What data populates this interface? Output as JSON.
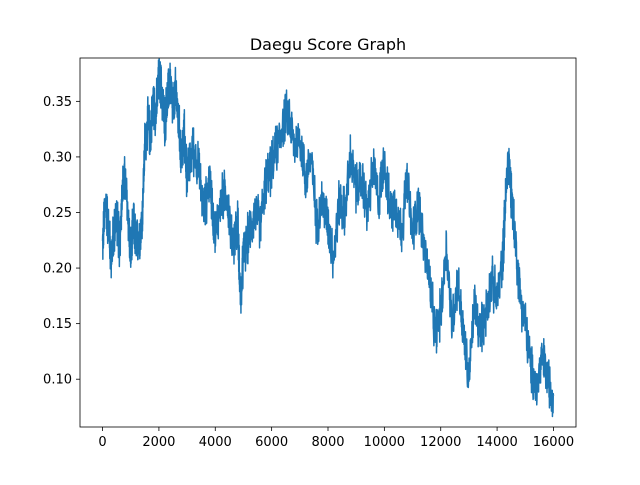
{
  "chart_data": {
    "type": "line",
    "title": "Daegu Score Graph",
    "xlabel": "",
    "ylabel": "",
    "xlim": [
      -800,
      16800
    ],
    "ylim": [
      0.057,
      0.389
    ],
    "xticks": [
      0,
      2000,
      4000,
      6000,
      8000,
      10000,
      12000,
      14000,
      16000
    ],
    "yticks": [
      0.1,
      0.15,
      0.2,
      0.25,
      0.3,
      0.35
    ],
    "xtick_labels": [
      "0",
      "2000",
      "4000",
      "6000",
      "8000",
      "10000",
      "12000",
      "14000",
      "16000"
    ],
    "ytick_labels": [
      "0.10",
      "0.15",
      "0.20",
      "0.25",
      "0.30",
      "0.35"
    ],
    "grid": false,
    "legend": "none",
    "series": [
      {
        "color": "#1f77b4",
        "x": [
          0,
          100,
          200,
          300,
          400,
          500,
          600,
          700,
          800,
          900,
          1000,
          1100,
          1200,
          1300,
          1400,
          1500,
          1600,
          1700,
          1800,
          1900,
          2000,
          2100,
          2200,
          2300,
          2400,
          2500,
          2600,
          2700,
          2800,
          2900,
          3000,
          3200,
          3400,
          3600,
          3800,
          4000,
          4200,
          4400,
          4600,
          4800,
          4900,
          5000,
          5200,
          5400,
          5600,
          5800,
          6000,
          6200,
          6400,
          6600,
          6800,
          7000,
          7200,
          7400,
          7600,
          7800,
          8000,
          8200,
          8400,
          8600,
          8800,
          9000,
          9200,
          9400,
          9600,
          9800,
          10000,
          10200,
          10400,
          10600,
          10800,
          11000,
          11200,
          11400,
          11600,
          11800,
          12000,
          12200,
          12400,
          12600,
          12800,
          13000,
          13200,
          13400,
          13600,
          13800,
          14000,
          14200,
          14300,
          14400,
          14500,
          14600,
          14800,
          15000,
          15200,
          15400,
          15600,
          15800,
          16000
        ],
        "y": [
          0.22,
          0.26,
          0.24,
          0.21,
          0.23,
          0.25,
          0.22,
          0.27,
          0.28,
          0.25,
          0.21,
          0.24,
          0.22,
          0.23,
          0.24,
          0.31,
          0.33,
          0.32,
          0.35,
          0.34,
          0.37,
          0.36,
          0.33,
          0.35,
          0.37,
          0.34,
          0.36,
          0.33,
          0.3,
          0.32,
          0.28,
          0.31,
          0.29,
          0.25,
          0.28,
          0.23,
          0.26,
          0.27,
          0.22,
          0.24,
          0.17,
          0.21,
          0.23,
          0.25,
          0.24,
          0.28,
          0.29,
          0.31,
          0.33,
          0.34,
          0.31,
          0.32,
          0.28,
          0.3,
          0.24,
          0.26,
          0.24,
          0.21,
          0.26,
          0.25,
          0.3,
          0.27,
          0.28,
          0.25,
          0.29,
          0.26,
          0.3,
          0.25,
          0.26,
          0.23,
          0.28,
          0.23,
          0.26,
          0.22,
          0.19,
          0.14,
          0.16,
          0.22,
          0.15,
          0.19,
          0.14,
          0.1,
          0.17,
          0.14,
          0.16,
          0.19,
          0.17,
          0.21,
          0.26,
          0.3,
          0.27,
          0.24,
          0.18,
          0.15,
          0.11,
          0.09,
          0.12,
          0.1,
          0.085
        ]
      }
    ]
  }
}
